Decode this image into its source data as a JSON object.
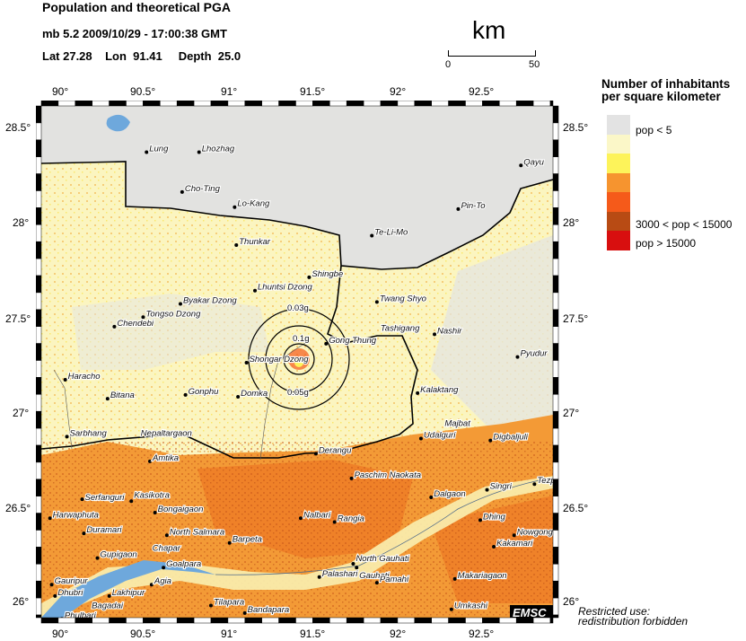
{
  "header": {
    "title": "Population and theoretical PGA",
    "event": "mb 5.2  2009/10/29 - 17:00:38 GMT",
    "location": "Lat 27.28    Lon  91.41     Depth  25.0"
  },
  "scale_bar": {
    "unit": "km",
    "start": "0",
    "end": "50"
  },
  "axes": {
    "lon_ticks": [
      "90°",
      "90.5°",
      "91°",
      "91.5°",
      "92°",
      "92.5°"
    ],
    "lat_ticks": [
      "28.5°",
      "28°",
      "27.5°",
      "27°",
      "26.5°",
      "26°"
    ]
  },
  "legend": {
    "title_line1": "Number of inhabitants",
    "title_line2": "per square kilometer",
    "classes": [
      {
        "color": "#e3e3e3",
        "label": "pop < 5"
      },
      {
        "color": "#fbf7c8",
        "label": ""
      },
      {
        "color": "#fdf35a",
        "label": ""
      },
      {
        "color": "#f6942f",
        "label": ""
      },
      {
        "color": "#f55a1a",
        "label": ""
      },
      {
        "color": "#b84b14",
        "label": "3000 < pop < 15000"
      },
      {
        "color": "#d80f0f",
        "label": "pop > 15000"
      }
    ]
  },
  "epicenter": {
    "lat": 27.28,
    "lon": 91.41
  },
  "pga_rings": [
    "0.03g",
    "0.05g",
    "0.1g"
  ],
  "cities": [
    {
      "name": "Lung",
      "lon": 90.51,
      "lat": 28.37
    },
    {
      "name": "Lhozhag",
      "lon": 90.82,
      "lat": 28.37
    },
    {
      "name": "Cho-Ting",
      "lon": 90.72,
      "lat": 28.16
    },
    {
      "name": "Lo-Kang",
      "lon": 91.03,
      "lat": 28.08
    },
    {
      "name": "Thunkar",
      "lon": 91.04,
      "lat": 27.88
    },
    {
      "name": "Shingbe",
      "lon": 91.47,
      "lat": 27.71
    },
    {
      "name": "Lhuntsi Dzong",
      "lon": 91.15,
      "lat": 27.64
    },
    {
      "name": "Byakar Dzong",
      "lon": 90.71,
      "lat": 27.57
    },
    {
      "name": "Tongso Dzong",
      "lon": 90.49,
      "lat": 27.5
    },
    {
      "name": "Chendebi",
      "lon": 90.32,
      "lat": 27.45
    },
    {
      "name": "Haracho",
      "lon": 90.03,
      "lat": 27.17
    },
    {
      "name": "Bitana",
      "lon": 90.28,
      "lat": 27.07
    },
    {
      "name": "Gonphu",
      "lon": 90.74,
      "lat": 27.09
    },
    {
      "name": "Domka",
      "lon": 91.05,
      "lat": 27.08
    },
    {
      "name": "Shongar Dzong",
      "lon": 91.1,
      "lat": 27.26
    },
    {
      "name": "Gong Thung",
      "lon": 91.57,
      "lat": 27.36
    },
    {
      "name": "Twang Shyo",
      "lon": 91.87,
      "lat": 27.58
    },
    {
      "name": "Tashigang",
      "lon": 91.87,
      "lat": 27.38
    },
    {
      "name": "Nashir",
      "lon": 92.21,
      "lat": 27.41
    },
    {
      "name": "Te-Li-Mo",
      "lon": 91.84,
      "lat": 27.93
    },
    {
      "name": "Pin-To",
      "lon": 92.35,
      "lat": 28.07
    },
    {
      "name": "Qayu",
      "lon": 92.72,
      "lat": 28.3
    },
    {
      "name": "Pyudur",
      "lon": 92.7,
      "lat": 27.29
    },
    {
      "name": "Kalaktang",
      "lon": 92.11,
      "lat": 27.1
    },
    {
      "name": "Sarbhang",
      "lon": 90.04,
      "lat": 26.87
    },
    {
      "name": "Nepaltargaon",
      "lon": 90.46,
      "lat": 26.87
    },
    {
      "name": "Amtika",
      "lon": 90.53,
      "lat": 26.74
    },
    {
      "name": "Derangu",
      "lon": 91.51,
      "lat": 26.78
    },
    {
      "name": "Udalguri",
      "lon": 92.13,
      "lat": 26.86
    },
    {
      "name": "Majbat",
      "lon": 92.27,
      "lat": 26.88
    },
    {
      "name": "Digbaljuli",
      "lon": 92.54,
      "lat": 26.85
    },
    {
      "name": "Paschim Naokata",
      "lon": 91.72,
      "lat": 26.65
    },
    {
      "name": "Tezpur",
      "lon": 92.8,
      "lat": 26.62
    },
    {
      "name": "Singri",
      "lon": 92.52,
      "lat": 26.59
    },
    {
      "name": "Dalgaon",
      "lon": 92.19,
      "lat": 26.55
    },
    {
      "name": "Serfanguri",
      "lon": 90.13,
      "lat": 26.54
    },
    {
      "name": "Kasikotra",
      "lon": 90.42,
      "lat": 26.53
    },
    {
      "name": "Bongaigaon",
      "lon": 90.56,
      "lat": 26.47
    },
    {
      "name": "Harwaphuta",
      "lon": 89.94,
      "lat": 26.44
    },
    {
      "name": "Duramari",
      "lon": 90.14,
      "lat": 26.36
    },
    {
      "name": "North Salmara",
      "lon": 90.63,
      "lat": 26.35
    },
    {
      "name": "Barpeta",
      "lon": 91.0,
      "lat": 26.31
    },
    {
      "name": "Nalbari",
      "lon": 91.42,
      "lat": 26.44
    },
    {
      "name": "Rangia",
      "lon": 91.62,
      "lat": 26.42
    },
    {
      "name": "Dhing",
      "lon": 92.48,
      "lat": 26.43
    },
    {
      "name": "Nowgong",
      "lon": 92.68,
      "lat": 26.35
    },
    {
      "name": "Kakamari",
      "lon": 92.56,
      "lat": 26.29
    },
    {
      "name": "Chapar",
      "lon": 90.46,
      "lat": 26.26
    },
    {
      "name": "Gupigaon",
      "lon": 90.22,
      "lat": 26.23
    },
    {
      "name": "Goalpara",
      "lon": 90.61,
      "lat": 26.18
    },
    {
      "name": "Gauripur",
      "lon": 89.95,
      "lat": 26.09
    },
    {
      "name": "Agia",
      "lon": 90.54,
      "lat": 26.09
    },
    {
      "name": "Dhubri",
      "lon": 89.97,
      "lat": 26.03
    },
    {
      "name": "Lakhipur",
      "lon": 90.29,
      "lat": 26.03
    },
    {
      "name": "Bagadai",
      "lon": 90.17,
      "lat": 25.96
    },
    {
      "name": "Phulbari",
      "lon": 90.01,
      "lat": 25.91
    },
    {
      "name": "Tilapara",
      "lon": 90.89,
      "lat": 25.98
    },
    {
      "name": "Bandapara",
      "lon": 91.09,
      "lat": 25.94
    },
    {
      "name": "North Gauhati",
      "lon": 91.73,
      "lat": 26.2
    },
    {
      "name": "Gauhati",
      "lon": 91.75,
      "lat": 26.18
    },
    {
      "name": "Palashari",
      "lon": 91.53,
      "lat": 26.13
    },
    {
      "name": "Pamahi",
      "lon": 91.87,
      "lat": 26.1
    },
    {
      "name": "Makariagaon",
      "lon": 92.33,
      "lat": 26.12
    },
    {
      "name": "Umkashi",
      "lon": 92.31,
      "lat": 25.96
    }
  ],
  "logo": "EMSC",
  "notice_line1": "Restricted use:",
  "notice_line2": "redistribution forbidden"
}
